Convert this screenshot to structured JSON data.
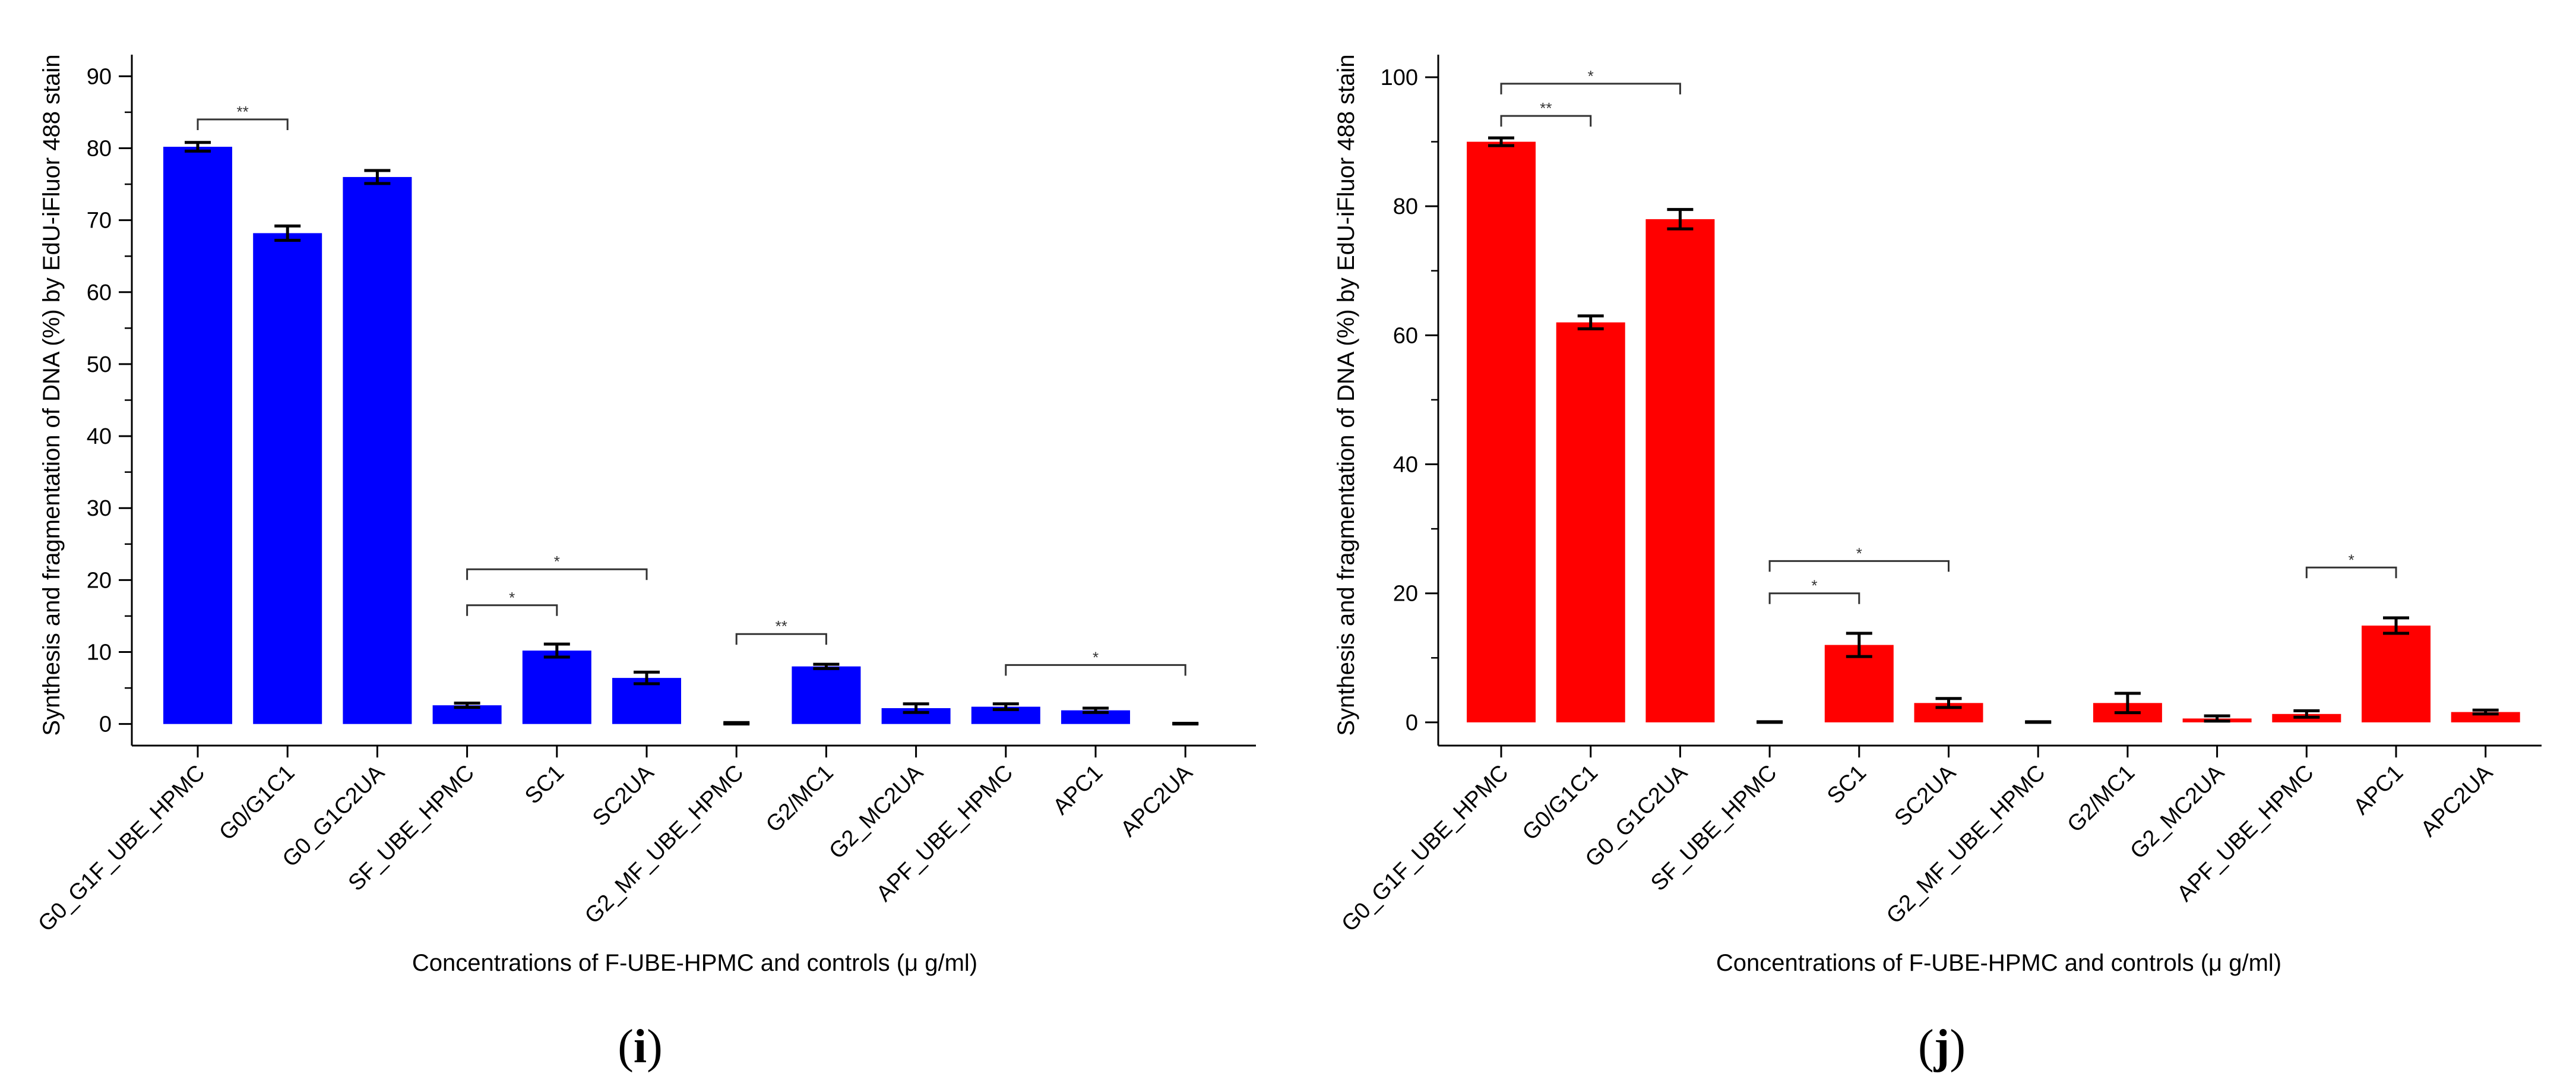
{
  "chart_data": [
    {
      "type": "bar",
      "panel_label": "i",
      "panel_open": "(",
      "panel_close": ")",
      "ylabel": "Synthesis and fragmentation of DNA (%) by EdU-iFluor 488 stain",
      "xlabel": "Concentrations of F-UBE-HPMC and controls (μ g/ml)",
      "color": "#0000ff",
      "ylim": [
        -3,
        93
      ],
      "yticks": [
        0,
        10,
        20,
        30,
        40,
        50,
        60,
        70,
        80,
        90
      ],
      "ytick_labels": [
        "0",
        "10",
        "20",
        "30",
        "40",
        "50",
        "60",
        "70",
        "80",
        "90"
      ],
      "categories": [
        "G0_G1F_UBE_HPMC",
        "G0/G1C1",
        "G0_G1C2UA",
        "SF_UBE_HPMC",
        "SC1",
        "SC2UA",
        "G2_MF_UBE_HPMC",
        "G2/MC1",
        "G2_MC2UA",
        "APF_UBE_HPMC",
        "APC1",
        "APC2UA"
      ],
      "values": [
        80.2,
        68.2,
        76.0,
        2.6,
        10.2,
        6.4,
        0,
        8.0,
        2.2,
        2.4,
        1.9,
        0
      ],
      "errors": [
        0.6,
        1.0,
        0.9,
        0.3,
        0.9,
        0.8,
        0.2,
        0.3,
        0.6,
        0.4,
        0.3,
        0.1
      ],
      "significance": [
        {
          "from": 0,
          "to": 1,
          "y": 84,
          "label": "**"
        },
        {
          "from": 3,
          "to": 4,
          "y": 16.5,
          "label": "*"
        },
        {
          "from": 3,
          "to": 5,
          "y": 21.5,
          "label": "*"
        },
        {
          "from": 6,
          "to": 7,
          "y": 12.5,
          "label": "**"
        },
        {
          "from": 9,
          "to": 11,
          "y": 8.2,
          "label": "*"
        }
      ]
    },
    {
      "type": "bar",
      "panel_label": "j",
      "panel_open": "(",
      "panel_close": ")",
      "ylabel": "Synthesis and fragmentation of DNA (%) by EdU-iFluor 488 stain",
      "xlabel": "Concentrations of F-UBE-HPMC and controls (μ g/ml)",
      "color": "#ff0000",
      "ylim": [
        -3.6,
        103.5
      ],
      "yticks": [
        0,
        20,
        40,
        60,
        80,
        100
      ],
      "ytick_labels": [
        "0",
        "20",
        "40",
        "60",
        "80",
        "100"
      ],
      "categories": [
        "G0_G1F_UBE_HPMC",
        "G0/G1C1",
        "G0_G1C2UA",
        "SF_UBE_HPMC",
        "SC1",
        "SC2UA",
        "G2_MF_UBE_HPMC",
        "G2/MC1",
        "G2_MC2UA",
        "APF_UBE_HPMC",
        "APC1",
        "APC2UA"
      ],
      "values": [
        90.0,
        62.0,
        78.0,
        0,
        12.0,
        3.0,
        0,
        3.0,
        0.6,
        1.3,
        15.0,
        1.6
      ],
      "errors": [
        0.6,
        1.0,
        1.5,
        0.1,
        1.8,
        0.7,
        0.1,
        1.5,
        0.4,
        0.5,
        1.2,
        0.3
      ],
      "significance": [
        {
          "from": 0,
          "to": 1,
          "y": 94,
          "label": "**"
        },
        {
          "from": 0,
          "to": 2,
          "y": 99,
          "label": "*"
        },
        {
          "from": 3,
          "to": 4,
          "y": 20,
          "label": "*"
        },
        {
          "from": 3,
          "to": 5,
          "y": 25,
          "label": "*"
        },
        {
          "from": 9,
          "to": 10,
          "y": 24,
          "label": "*"
        }
      ]
    }
  ]
}
